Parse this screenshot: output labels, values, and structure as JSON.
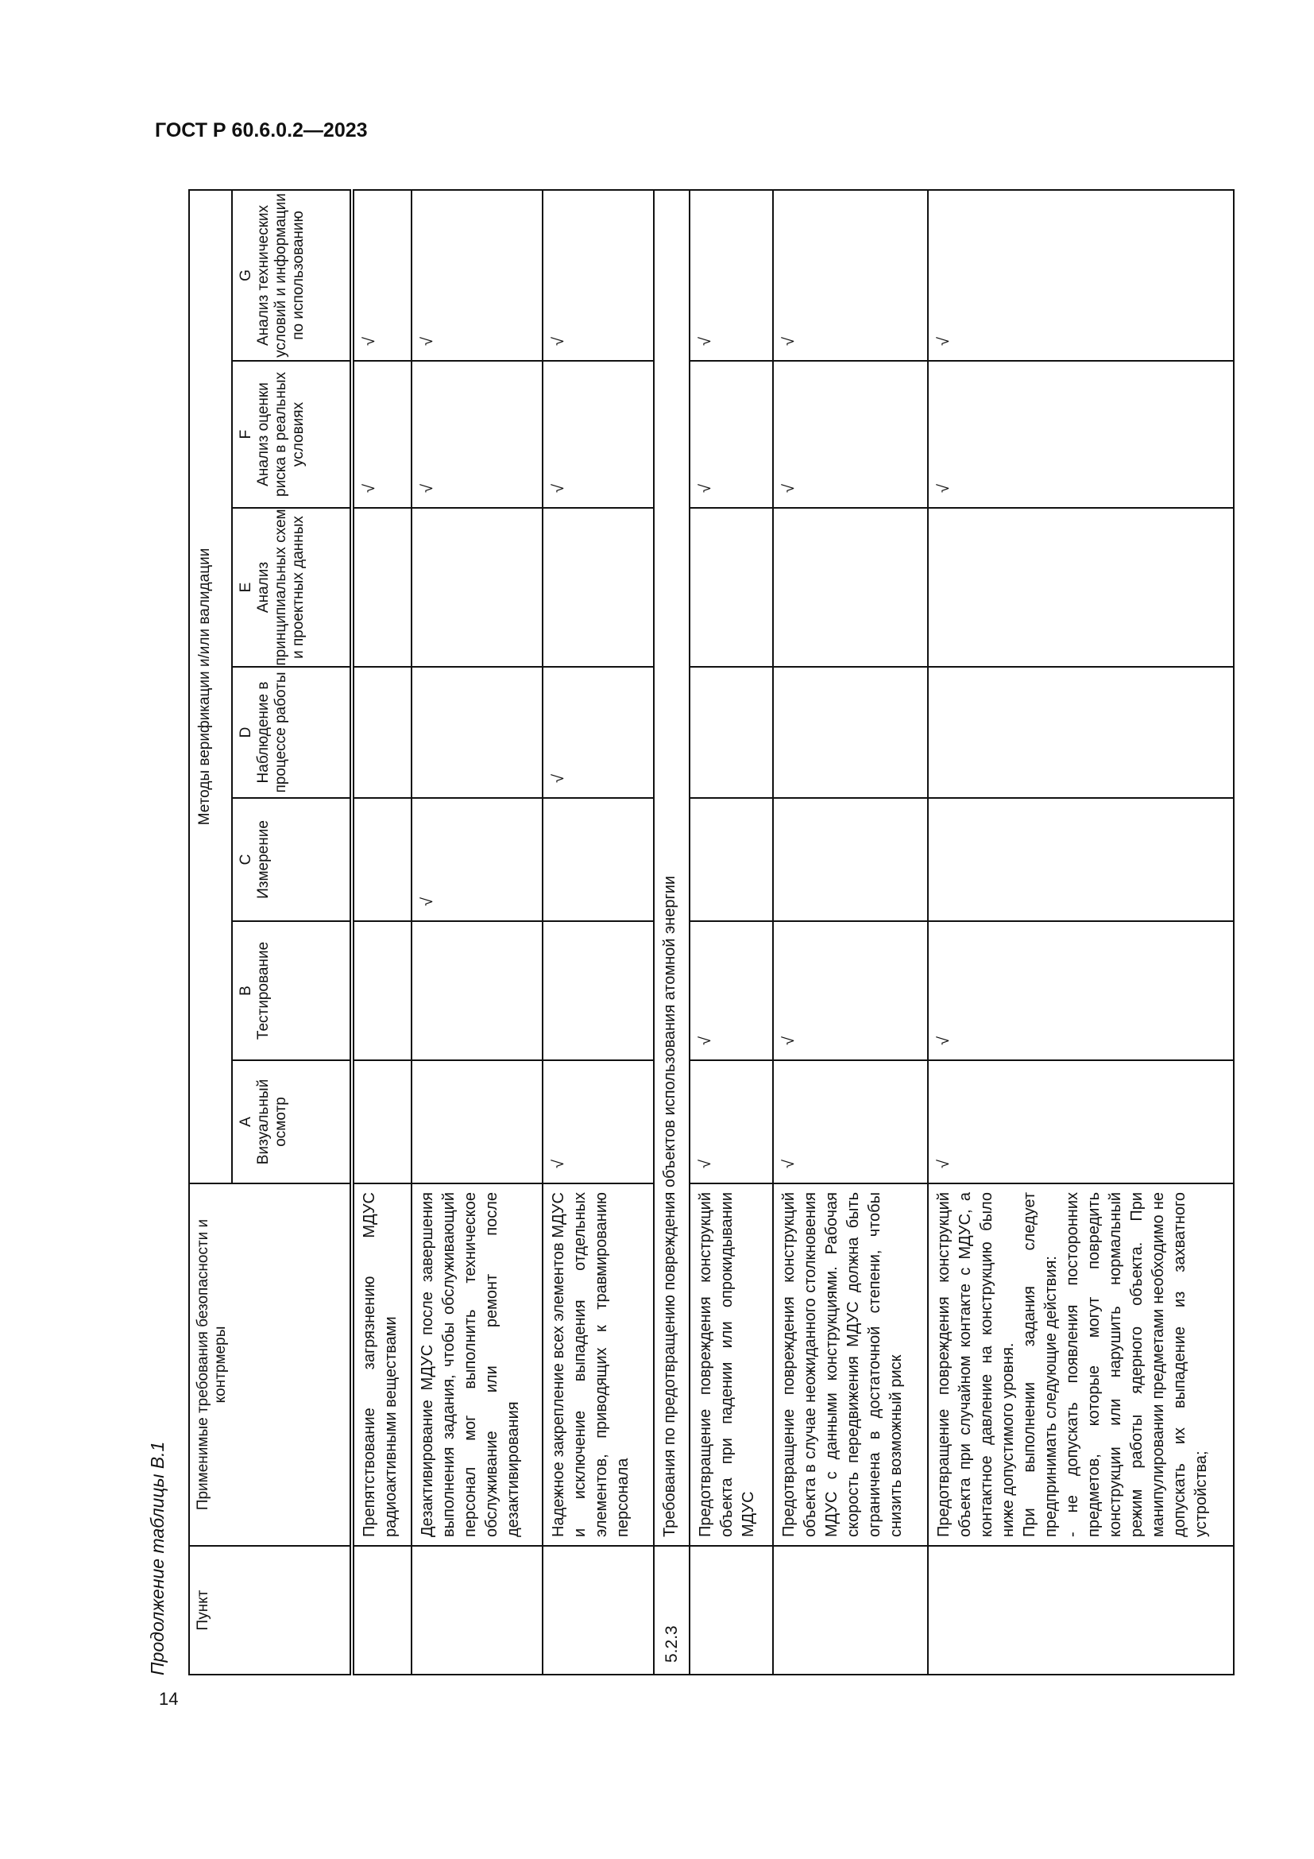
{
  "header": {
    "doc_code": "ГОСТ Р 60.6.0.2—2023"
  },
  "page_number": "14",
  "caption": "Продолжение таблицы В.1",
  "check_mark": "√",
  "table": {
    "col_punkt": "Пункт",
    "col_requirements": "Применимые требования безопасности и контрмеры",
    "group_title": "Методы верификации и/или валидации",
    "methods": [
      {
        "letter": "A",
        "name": "Визуальный осмотр"
      },
      {
        "letter": "B",
        "name": "Тестирование"
      },
      {
        "letter": "C",
        "name": "Измерение"
      },
      {
        "letter": "D",
        "name": "Наблюдение в процессе работы"
      },
      {
        "letter": "E",
        "name": "Анализ принципиальных схем и проектных данных"
      },
      {
        "letter": "F",
        "name": "Анализ оценки риска в реальных условиях"
      },
      {
        "letter": "G",
        "name": "Анализ технических условий и информации по использованию"
      }
    ],
    "rows": [
      {
        "type": "item",
        "punkt": "",
        "text": [
          "Препятствование загрязнению МДУС радиоактивными веществами"
        ],
        "checks": [
          "F",
          "G"
        ]
      },
      {
        "type": "item",
        "punkt": "",
        "text": [
          "Дезактивирование МДУС после завершения выполнения задания, чтобы обслуживающий персонал мог выполнить техническое обслуживание или ремонт после дезактивирования"
        ],
        "checks": [
          "C",
          "F",
          "G"
        ]
      },
      {
        "type": "item",
        "punkt": "",
        "text": [
          "Надежное закрепление всех элементов МДУС и исключение выпадения отдельных элементов, приводящих к травмированию персонала"
        ],
        "checks": [
          "A",
          "D",
          "F",
          "G"
        ]
      },
      {
        "type": "section",
        "punkt": "5.2.3",
        "text": "Требования по предотвращению повреждения объектов использования атомной энергии"
      },
      {
        "type": "item",
        "punkt": "",
        "text": [
          "Предотвращение повреждения конструкций объекта при падении или опрокидывании МДУС"
        ],
        "checks": [
          "A",
          "B",
          "F",
          "G"
        ]
      },
      {
        "type": "item",
        "punkt": "",
        "text": [
          "Предотвращение повреждения конструкций объекта в случае неожиданного столкновения МДУС с данными конструкциями. Рабочая скорость передвижения МДУС должна быть ограничена в достаточной степени, чтобы снизить возможный риск"
        ],
        "checks": [
          "A",
          "B",
          "F",
          "G"
        ]
      },
      {
        "type": "item",
        "punkt": "",
        "text": [
          "Предотвращение повреждения конструкций объекта при случайном контакте с МДУС, а контактное давление на конструкцию было ниже допустимого уровня.",
          "При выполнении задания следует предпринимать следующие действия:",
          "- не допускать появления посторонних предметов, которые могут повредить конструкции или нарушить нормальный режим работы ядерного объекта. При манипулировании предметами необходимо не допускать их выпадение из захватного устройства;"
        ],
        "checks": [
          "A",
          "B",
          "F",
          "G"
        ]
      }
    ]
  }
}
